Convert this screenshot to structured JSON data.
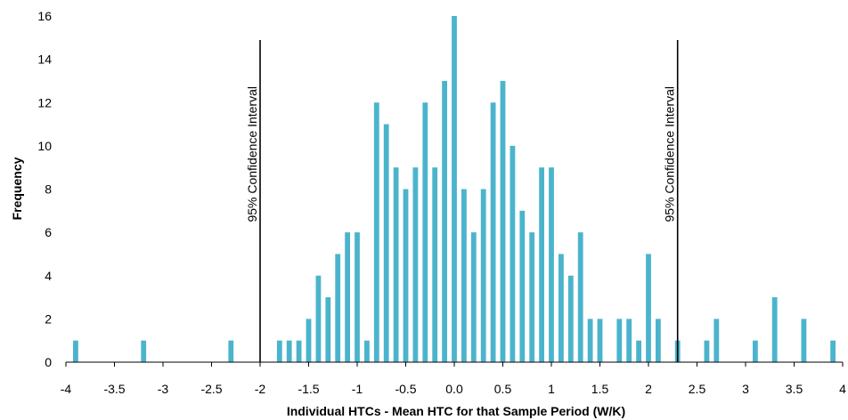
{
  "chart_data": {
    "type": "bar",
    "xlabel": "Individual HTCs - Mean HTC for that Sample Period (W/K)",
    "ylabel": "Frequency",
    "xlim": [
      -4,
      4
    ],
    "ylim": [
      0,
      16
    ],
    "x_ticks": [
      "-4",
      "-3.5",
      "-3",
      "-2.5",
      "-2",
      "-1.5",
      "-1",
      "-0.5",
      "0.0",
      "0.5",
      "1",
      "1.5",
      "2",
      "2.5",
      "3",
      "3.5",
      "4"
    ],
    "y_ticks": [
      "0",
      "2",
      "4",
      "6",
      "8",
      "10",
      "12",
      "14",
      "16"
    ],
    "bar_color": "#4bb4cc",
    "x": [
      -3.9,
      -3.2,
      -2.3,
      -1.8,
      -1.7,
      -1.6,
      -1.5,
      -1.4,
      -1.3,
      -1.2,
      -1.1,
      -1.0,
      -0.9,
      -0.8,
      -0.7,
      -0.6,
      -0.5,
      -0.4,
      -0.3,
      -0.2,
      -0.1,
      0.0,
      0.1,
      0.2,
      0.3,
      0.4,
      0.5,
      0.6,
      0.7,
      0.8,
      0.9,
      1.0,
      1.1,
      1.2,
      1.3,
      1.4,
      1.5,
      1.7,
      1.8,
      1.9,
      2.0,
      2.1,
      2.3,
      2.6,
      2.7,
      3.1,
      3.3,
      3.6,
      3.9
    ],
    "values": [
      1,
      1,
      1,
      1,
      1,
      1,
      2,
      4,
      3,
      5,
      6,
      6,
      1,
      12,
      11,
      9,
      8,
      9,
      12,
      9,
      13,
      16,
      8,
      6,
      8,
      12,
      13,
      10,
      7,
      6,
      9,
      9,
      5,
      4,
      6,
      2,
      2,
      2,
      2,
      1,
      5,
      2,
      1,
      1,
      2,
      1,
      3,
      2,
      1
    ],
    "annotations": [
      {
        "x": -2.0,
        "label": "95% Confidence Interval"
      },
      {
        "x": 2.3,
        "label": "95% Confidence Interval"
      }
    ]
  }
}
